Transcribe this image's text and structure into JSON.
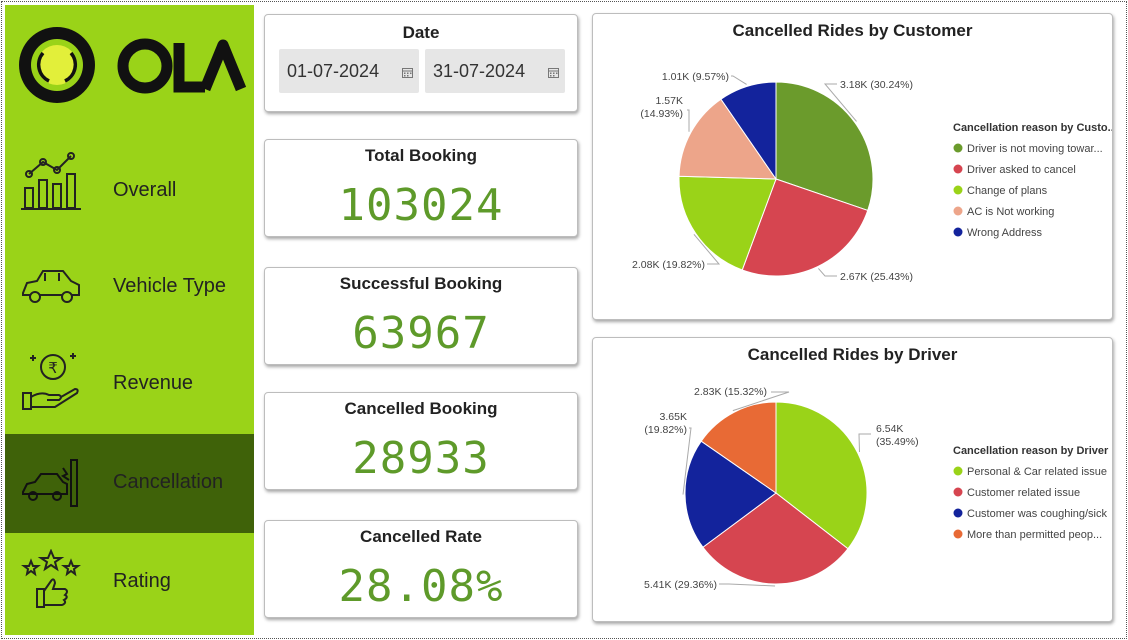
{
  "brand": {
    "name": "OLA"
  },
  "sidebar": {
    "items": [
      {
        "label": "Overall",
        "icon": "bar-chart-trend-icon"
      },
      {
        "label": "Vehicle Type",
        "icon": "car-icon"
      },
      {
        "label": "Revenue",
        "icon": "rupee-hand-icon"
      },
      {
        "label": "Cancellation",
        "icon": "car-crash-icon",
        "active": true
      },
      {
        "label": "Rating",
        "icon": "stars-thumbs-up-icon"
      }
    ],
    "colors": {
      "background": "#9ad318",
      "active": "#3f6209"
    }
  },
  "date_filter": {
    "title": "Date",
    "start": "01-07-2024",
    "end": "31-07-2024"
  },
  "kpis": {
    "total_booking": {
      "title": "Total Booking",
      "value": "103024"
    },
    "successful_booking": {
      "title": "Successful Booking",
      "value": "63967"
    },
    "cancelled_booking": {
      "title": "Cancelled Booking",
      "value": "28933"
    },
    "cancelled_rate": {
      "title": "Cancelled Rate",
      "value": "28.08%"
    }
  },
  "chart_data": [
    {
      "type": "pie",
      "title": "Cancelled Rides by Customer",
      "legend_title": "Cancellation reason by Custo...",
      "legend_position": "right",
      "slices": [
        {
          "legend": "Driver is not moving towar...",
          "value": 3.18,
          "percent": 30.24,
          "label": "3.18K (30.24%)",
          "color": "#6b9b2c"
        },
        {
          "legend": "Driver asked to cancel",
          "value": 2.67,
          "percent": 25.43,
          "label": "2.67K (25.43%)",
          "color": "#d64550"
        },
        {
          "legend": "Change of plans",
          "value": 2.08,
          "percent": 19.82,
          "label": "2.08K (19.82%)",
          "color": "#9ad318"
        },
        {
          "legend": "AC is Not working",
          "value": 1.57,
          "percent": 14.93,
          "label": "1.57K (14.93%)",
          "color": "#eda58a"
        },
        {
          "legend": "Wrong Address",
          "value": 1.01,
          "percent": 9.57,
          "label": "1.01K (9.57%)",
          "color": "#13239c"
        }
      ]
    },
    {
      "type": "pie",
      "title": "Cancelled Rides by Driver",
      "legend_title": "Cancellation reason by Driver",
      "legend_position": "right",
      "slices": [
        {
          "legend": "Personal & Car related issue",
          "value": 6.54,
          "percent": 35.49,
          "label": "6.54K (35.49%)",
          "color": "#9ad318"
        },
        {
          "legend": "Customer related issue",
          "value": 5.41,
          "percent": 29.36,
          "label": "5.41K (29.36%)",
          "color": "#d64550"
        },
        {
          "legend": "Customer was coughing/sick",
          "value": 3.65,
          "percent": 19.82,
          "label": "3.65K (19.82%)",
          "color": "#13239c"
        },
        {
          "legend": "More than permitted peop...",
          "value": 2.83,
          "percent": 15.32,
          "label": "2.83K (15.32%)",
          "color": "#e86a35"
        }
      ]
    }
  ]
}
